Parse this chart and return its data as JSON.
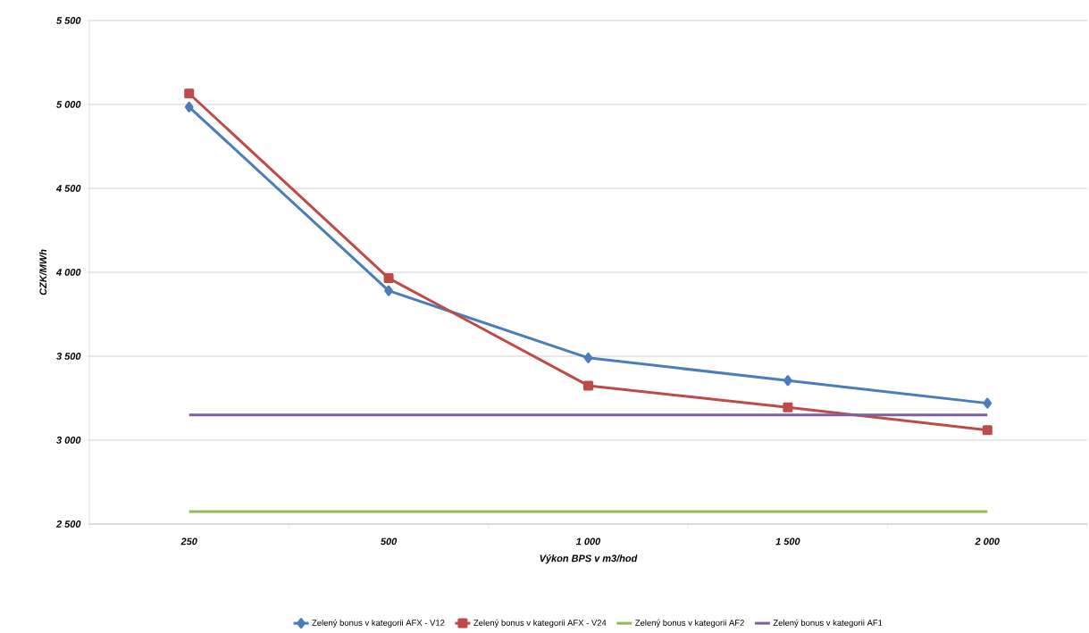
{
  "chart_data": {
    "type": "line",
    "xlabel": "Výkon BPS v m3/hod",
    "ylabel": "CZK/MWh",
    "categories": [
      "250",
      "500",
      "1 000",
      "1 500",
      "2 000"
    ],
    "series": [
      {
        "name": "Zelený bonus v kategorii  AFX - V12",
        "color": "#4a7ebb",
        "marker": "diamond",
        "values": [
          4985,
          3890,
          3490,
          3355,
          3220
        ]
      },
      {
        "name": "Zelený bonus v kategorii  AFX - V24",
        "color": "#be4b48",
        "marker": "square",
        "values": [
          5065,
          3965,
          3325,
          3195,
          3060
        ]
      },
      {
        "name": "Zelený bonus v kategorii  AF2",
        "color": "#98b954",
        "marker": "none",
        "values": [
          2575,
          2575,
          2575,
          2575,
          2575
        ]
      },
      {
        "name": "Zelený bonus v kategorii  AF1",
        "color": "#7d60a0",
        "marker": "none",
        "values": [
          3150,
          3150,
          3150,
          3150,
          3150
        ]
      }
    ],
    "ylim": [
      2500,
      5500
    ],
    "yticks": [
      {
        "value": 2500,
        "label": "2 500"
      },
      {
        "value": 3000,
        "label": "3 000"
      },
      {
        "value": 3500,
        "label": "3 500"
      },
      {
        "value": 4000,
        "label": "4 000"
      },
      {
        "value": 4500,
        "label": "4 500"
      },
      {
        "value": 5000,
        "label": "5 000"
      },
      {
        "value": 5500,
        "label": "5 500"
      }
    ],
    "grid": "y",
    "legend": "bottom"
  }
}
